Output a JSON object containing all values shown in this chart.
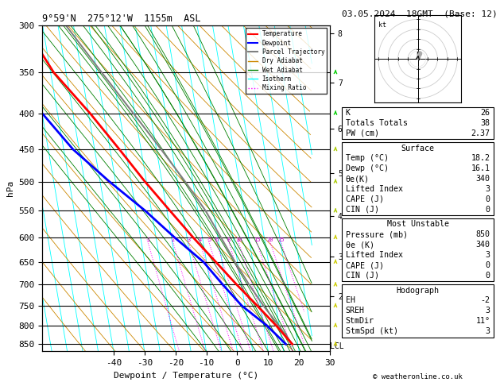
{
  "title_left": "9°59'N  275°12'W  1155m  ASL",
  "title_right": "03.05.2024  18GMT  (Base: 12)",
  "xlabel": "Dewpoint / Temperature (°C)",
  "ylabel_left": "hPa",
  "copyright": "© weatheronline.co.uk",
  "pressure_levels": [
    300,
    350,
    400,
    450,
    500,
    550,
    600,
    650,
    700,
    750,
    800,
    850
  ],
  "pressure_min": 300,
  "pressure_max": 870,
  "temp_min": -45,
  "temp_max": 38,
  "temp_ticks": [
    -40,
    -30,
    -20,
    -10,
    0,
    10,
    20,
    30
  ],
  "skew_factor": 18.0,
  "lcl_pressure": 855,
  "temp_profile_pressure": [
    850,
    800,
    750,
    700,
    650,
    600,
    550,
    500,
    450,
    400,
    350,
    300
  ],
  "temp_profile_temp": [
    18.2,
    14.0,
    9.0,
    3.5,
    -2.0,
    -8.0,
    -14.0,
    -20.5,
    -27.0,
    -34.5,
    -44.0,
    -51.0
  ],
  "dewp_profile_pressure": [
    850,
    800,
    750,
    700,
    650,
    600,
    550,
    500,
    450,
    400,
    350,
    300
  ],
  "dewp_profile_temp": [
    16.1,
    11.0,
    4.0,
    -1.0,
    -6.0,
    -14.0,
    -22.0,
    -32.0,
    -42.0,
    -50.0,
    -56.0,
    -60.0
  ],
  "parcel_profile_pressure": [
    850,
    800,
    750,
    700,
    650,
    600,
    550,
    500,
    450,
    400,
    350,
    300
  ],
  "parcel_profile_temp": [
    18.2,
    14.8,
    11.0,
    7.5,
    4.2,
    1.0,
    -2.5,
    -7.5,
    -13.5,
    -20.5,
    -28.5,
    -37.5
  ],
  "km_vals": [
    8,
    7,
    6,
    5,
    4,
    3,
    2
  ],
  "km_pressures": [
    308,
    362,
    421,
    487,
    559,
    639,
    727
  ],
  "mixing_ratio_vals": [
    1,
    2,
    3,
    4,
    5,
    6,
    8,
    10,
    15,
    20,
    25
  ],
  "mixing_ratio_label_p": 610,
  "wind_pressures": [
    850,
    800,
    750,
    700,
    650,
    600,
    550,
    500,
    450,
    400,
    350,
    300
  ],
  "wind_colors": [
    "#cccc00",
    "#cccc00",
    "#cccc00",
    "#cccc00",
    "#cccc00",
    "#cccc00",
    "#aacc00",
    "#aacc00",
    "#aacc00",
    "#00cc00",
    "#00cc00",
    "#00cc00"
  ],
  "wind_speeds": [
    3,
    3,
    3,
    3,
    3,
    3,
    3,
    3,
    3,
    3,
    3,
    3
  ],
  "wind_dirs": [
    11,
    11,
    11,
    11,
    11,
    11,
    11,
    11,
    11,
    11,
    11,
    11
  ]
}
